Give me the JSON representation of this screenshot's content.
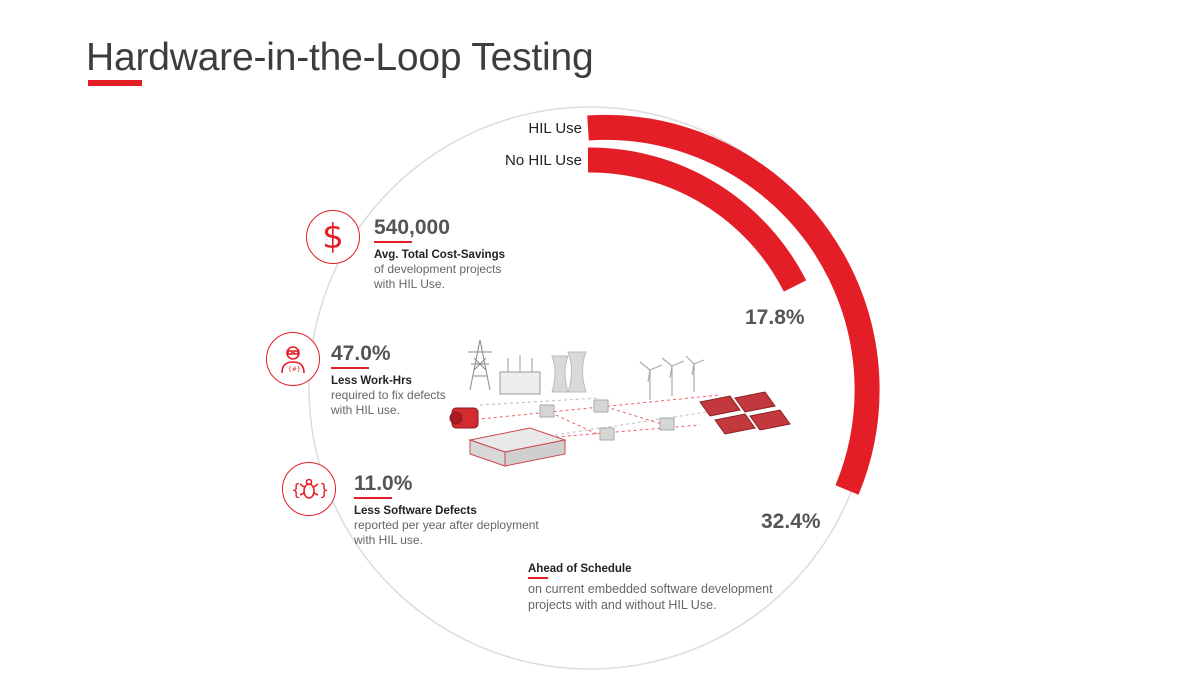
{
  "title": "Hardware-in-the-Loop Testing",
  "legend": {
    "hil": "HIL Use",
    "nohil": "No HIL Use"
  },
  "arcs": {
    "inner_pct": "17.8%",
    "outer_pct": "32.4%"
  },
  "stats": [
    {
      "value": "540,000",
      "heading": "Avg. Total Cost-Savings",
      "desc1": "of development projects",
      "desc2": "with HIL Use.",
      "icon": "dollar-icon"
    },
    {
      "value": "47.0%",
      "heading": "Less Work-Hrs",
      "desc1": "required to fix defects",
      "desc2": "with HIL use.",
      "icon": "engineer-icon"
    },
    {
      "value": "11.0%",
      "heading": "Less Software Defects",
      "desc1": "reported per year after deployment",
      "desc2": "with HIL use.",
      "icon": "bug-icon"
    }
  ],
  "footnote": {
    "heading": "Ahead of Schedule",
    "desc1": "on current embedded software development",
    "desc2": "projects with and without HIL Use."
  },
  "colors": {
    "accent": "#e41e26",
    "text": "#555555"
  }
}
